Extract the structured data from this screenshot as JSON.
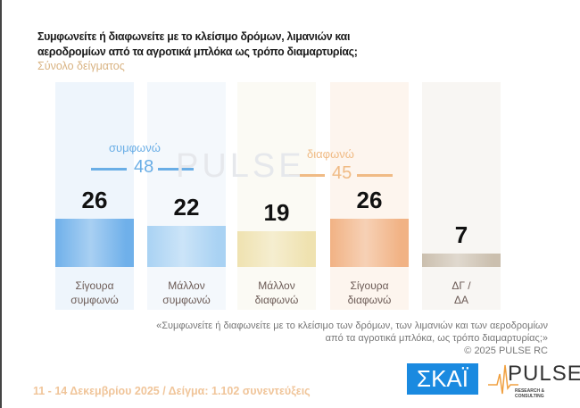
{
  "title_line1": "Συμφωνείτε ή διαφωνείτε με το κλείσιμο δρόμων, λιμανιών και",
  "title_line2": "αεροδρομίων από τα αγροτικά μπλόκα ως τρόπο διαμαρτυρίας;",
  "subtitle": "Σύνολο δείγματος",
  "chart_data": {
    "type": "bar",
    "categories": [
      "Σίγουρα συμφωνώ",
      "Μάλλον συμφωνώ",
      "Μάλλον διαφωνώ",
      "Σίγουρα διαφωνώ",
      "ΔΓ / ΔΑ"
    ],
    "category_lines": [
      [
        "Σίγουρα",
        "συμφωνώ"
      ],
      [
        "Μάλλον",
        "συμφωνώ"
      ],
      [
        "Μάλλον",
        "διαφωνώ"
      ],
      [
        "Σίγουρα",
        "διαφωνώ"
      ],
      [
        "ΔΓ /",
        "ΔΑ"
      ]
    ],
    "values": [
      26,
      22,
      19,
      26,
      7
    ],
    "colors": [
      "#6fb0ea",
      "#a9d2f3",
      "#efe2b0",
      "#f1b284",
      "#cbbfae"
    ],
    "groups": [
      {
        "label": "συμφωνώ",
        "total": "48",
        "color": "#6aaee6"
      },
      {
        "label": "διαφωνώ",
        "total": "45",
        "color": "#f0bb85"
      }
    ],
    "grid": false
  },
  "watermark": "PULSE",
  "note_line1": "«Συμφωνείτε ή διαφωνείτε με το κλείσιμο των δρόμων, των λιμανιών και των αεροδρομίων",
  "note_line2": "από τα αγροτικά μπλόκα, ως τρόπο διαμαρτυρίας;»",
  "copyright": "©  2025  PULSE RC",
  "footer": "11 - 14 Δεκεμβρίου 2025  /  Δείγμα:  1.102 συνεντεύξεις",
  "logo_skai": "ΣΚΑΪ",
  "logo_pulse": "PULSE",
  "logo_pulse_sub": "RESEARCH & CONSULTING"
}
